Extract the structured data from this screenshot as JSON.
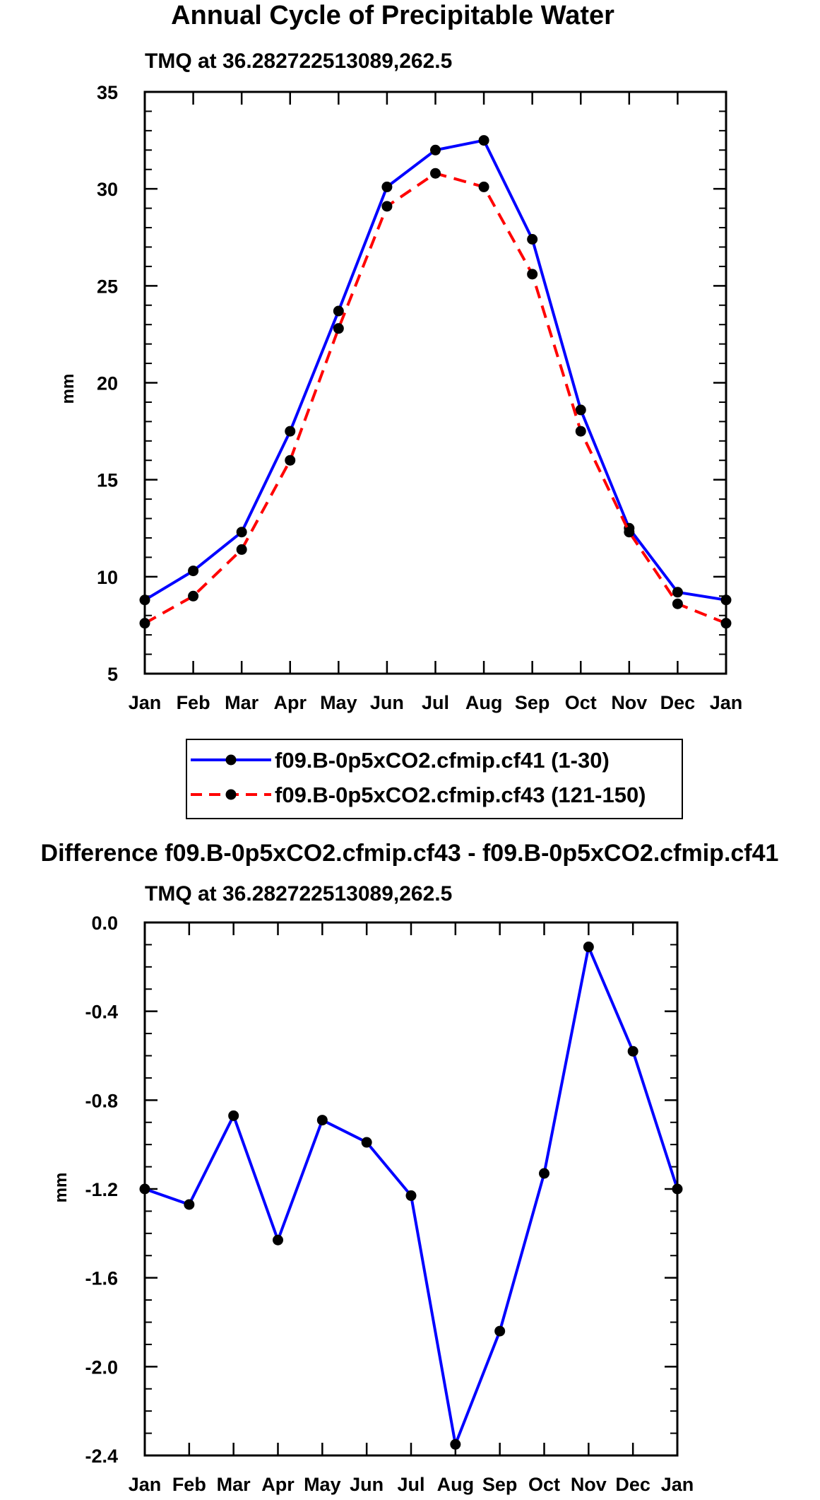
{
  "chart_data": [
    {
      "type": "line",
      "title": "Annual Cycle of Precipitable Water",
      "subtitle": "TMQ at 36.282722513089,262.5",
      "xlabel": "",
      "ylabel": "mm",
      "categories": [
        "Jan",
        "Feb",
        "Mar",
        "Apr",
        "May",
        "Jun",
        "Jul",
        "Aug",
        "Sep",
        "Oct",
        "Nov",
        "Dec",
        "Jan"
      ],
      "ylim": [
        5,
        35
      ],
      "yticks": [
        "5",
        "10",
        "15",
        "20",
        "25",
        "30",
        "35"
      ],
      "legend_position": "bottom",
      "series": [
        {
          "name": "f09.B-0p5xCO2.cfmip.cf41 (1-30)",
          "color": "#0000ff",
          "dash": "solid",
          "values": [
            8.8,
            10.3,
            12.3,
            17.5,
            23.7,
            30.1,
            32.0,
            32.5,
            27.4,
            18.6,
            12.5,
            9.2,
            8.8
          ]
        },
        {
          "name": "f09.B-0p5xCO2.cfmip.cf43 (121-150)",
          "color": "#ff0000",
          "dash": "dashed",
          "values": [
            7.6,
            9.0,
            11.4,
            16.0,
            22.8,
            29.1,
            30.8,
            30.1,
            25.6,
            17.5,
            12.3,
            8.6,
            7.6
          ]
        }
      ]
    },
    {
      "type": "line",
      "title": "Difference f09.B-0p5xCO2.cfmip.cf43 - f09.B-0p5xCO2.cfmip.cf41",
      "subtitle": "TMQ at 36.282722513089,262.5",
      "xlabel": "",
      "ylabel": "mm",
      "categories": [
        "Jan",
        "Feb",
        "Mar",
        "Apr",
        "May",
        "Jun",
        "Jul",
        "Aug",
        "Sep",
        "Oct",
        "Nov",
        "Dec",
        "Jan"
      ],
      "ylim": [
        -2.4,
        0.0
      ],
      "yticks": [
        "-2.4",
        "-2.0",
        "-1.6",
        "-1.2",
        "-0.8",
        "-0.4",
        "0.0"
      ],
      "series": [
        {
          "name": "Difference",
          "color": "#0000ff",
          "dash": "solid",
          "values": [
            -1.2,
            -1.27,
            -0.87,
            -1.43,
            -0.89,
            -0.99,
            -1.23,
            -2.35,
            -1.84,
            -1.13,
            -0.11,
            -0.58,
            -1.2
          ]
        }
      ]
    }
  ]
}
